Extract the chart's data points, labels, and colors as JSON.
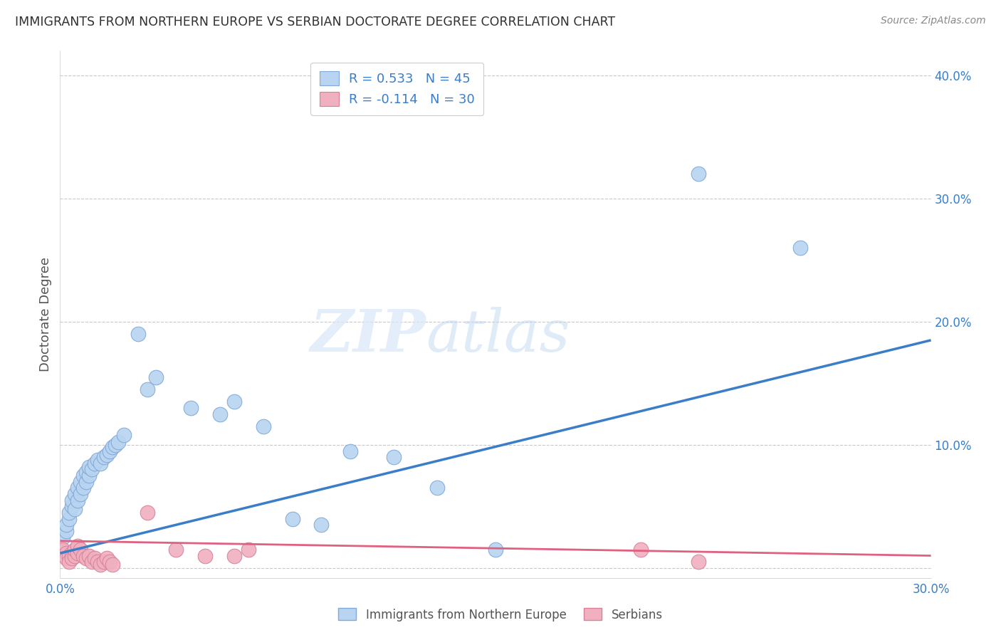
{
  "title": "IMMIGRANTS FROM NORTHERN EUROPE VS SERBIAN DOCTORATE DEGREE CORRELATION CHART",
  "source": "Source: ZipAtlas.com",
  "ylabel": "Doctorate Degree",
  "xlim": [
    0.0,
    0.3
  ],
  "ylim": [
    -0.008,
    0.42
  ],
  "watermark_zip": "ZIP",
  "watermark_atlas": "atlas",
  "blue_scatter": [
    [
      0.001,
      0.025
    ],
    [
      0.002,
      0.03
    ],
    [
      0.002,
      0.035
    ],
    [
      0.003,
      0.04
    ],
    [
      0.003,
      0.045
    ],
    [
      0.004,
      0.05
    ],
    [
      0.004,
      0.055
    ],
    [
      0.005,
      0.048
    ],
    [
      0.005,
      0.06
    ],
    [
      0.006,
      0.055
    ],
    [
      0.006,
      0.065
    ],
    [
      0.007,
      0.06
    ],
    [
      0.007,
      0.07
    ],
    [
      0.008,
      0.065
    ],
    [
      0.008,
      0.075
    ],
    [
      0.009,
      0.07
    ],
    [
      0.009,
      0.078
    ],
    [
      0.01,
      0.075
    ],
    [
      0.01,
      0.082
    ],
    [
      0.011,
      0.08
    ],
    [
      0.012,
      0.085
    ],
    [
      0.013,
      0.088
    ],
    [
      0.014,
      0.085
    ],
    [
      0.015,
      0.09
    ],
    [
      0.016,
      0.092
    ],
    [
      0.017,
      0.095
    ],
    [
      0.018,
      0.098
    ],
    [
      0.019,
      0.1
    ],
    [
      0.02,
      0.102
    ],
    [
      0.022,
      0.108
    ],
    [
      0.027,
      0.19
    ],
    [
      0.03,
      0.145
    ],
    [
      0.033,
      0.155
    ],
    [
      0.045,
      0.13
    ],
    [
      0.055,
      0.125
    ],
    [
      0.06,
      0.135
    ],
    [
      0.07,
      0.115
    ],
    [
      0.08,
      0.04
    ],
    [
      0.09,
      0.035
    ],
    [
      0.1,
      0.095
    ],
    [
      0.115,
      0.09
    ],
    [
      0.13,
      0.065
    ],
    [
      0.15,
      0.015
    ],
    [
      0.22,
      0.32
    ],
    [
      0.255,
      0.26
    ]
  ],
  "pink_scatter": [
    [
      0.001,
      0.015
    ],
    [
      0.002,
      0.012
    ],
    [
      0.002,
      0.008
    ],
    [
      0.003,
      0.01
    ],
    [
      0.003,
      0.005
    ],
    [
      0.004,
      0.012
    ],
    [
      0.004,
      0.008
    ],
    [
      0.005,
      0.01
    ],
    [
      0.005,
      0.015
    ],
    [
      0.006,
      0.012
    ],
    [
      0.006,
      0.018
    ],
    [
      0.007,
      0.015
    ],
    [
      0.008,
      0.01
    ],
    [
      0.009,
      0.008
    ],
    [
      0.01,
      0.01
    ],
    [
      0.011,
      0.005
    ],
    [
      0.012,
      0.008
    ],
    [
      0.013,
      0.005
    ],
    [
      0.014,
      0.003
    ],
    [
      0.015,
      0.005
    ],
    [
      0.016,
      0.008
    ],
    [
      0.017,
      0.005
    ],
    [
      0.018,
      0.003
    ],
    [
      0.03,
      0.045
    ],
    [
      0.04,
      0.015
    ],
    [
      0.05,
      0.01
    ],
    [
      0.06,
      0.01
    ],
    [
      0.065,
      0.015
    ],
    [
      0.2,
      0.015
    ],
    [
      0.22,
      0.005
    ]
  ],
  "blue_line_x": [
    0.0,
    0.3
  ],
  "blue_line_y": [
    0.012,
    0.185
  ],
  "pink_line_x": [
    0.0,
    0.3
  ],
  "pink_line_y": [
    0.022,
    0.01
  ],
  "blue_line_color": "#3a7dc9",
  "blue_scatter_face": "#b8d4f0",
  "blue_scatter_edge": "#80a8d8",
  "pink_line_color": "#e06080",
  "pink_scatter_face": "#f0b0c0",
  "pink_scatter_edge": "#d88098",
  "bg_color": "#ffffff",
  "grid_color": "#c8c8c8",
  "title_color": "#303030",
  "right_axis_color": "#3a7dc9",
  "ylabel_color": "#555555"
}
